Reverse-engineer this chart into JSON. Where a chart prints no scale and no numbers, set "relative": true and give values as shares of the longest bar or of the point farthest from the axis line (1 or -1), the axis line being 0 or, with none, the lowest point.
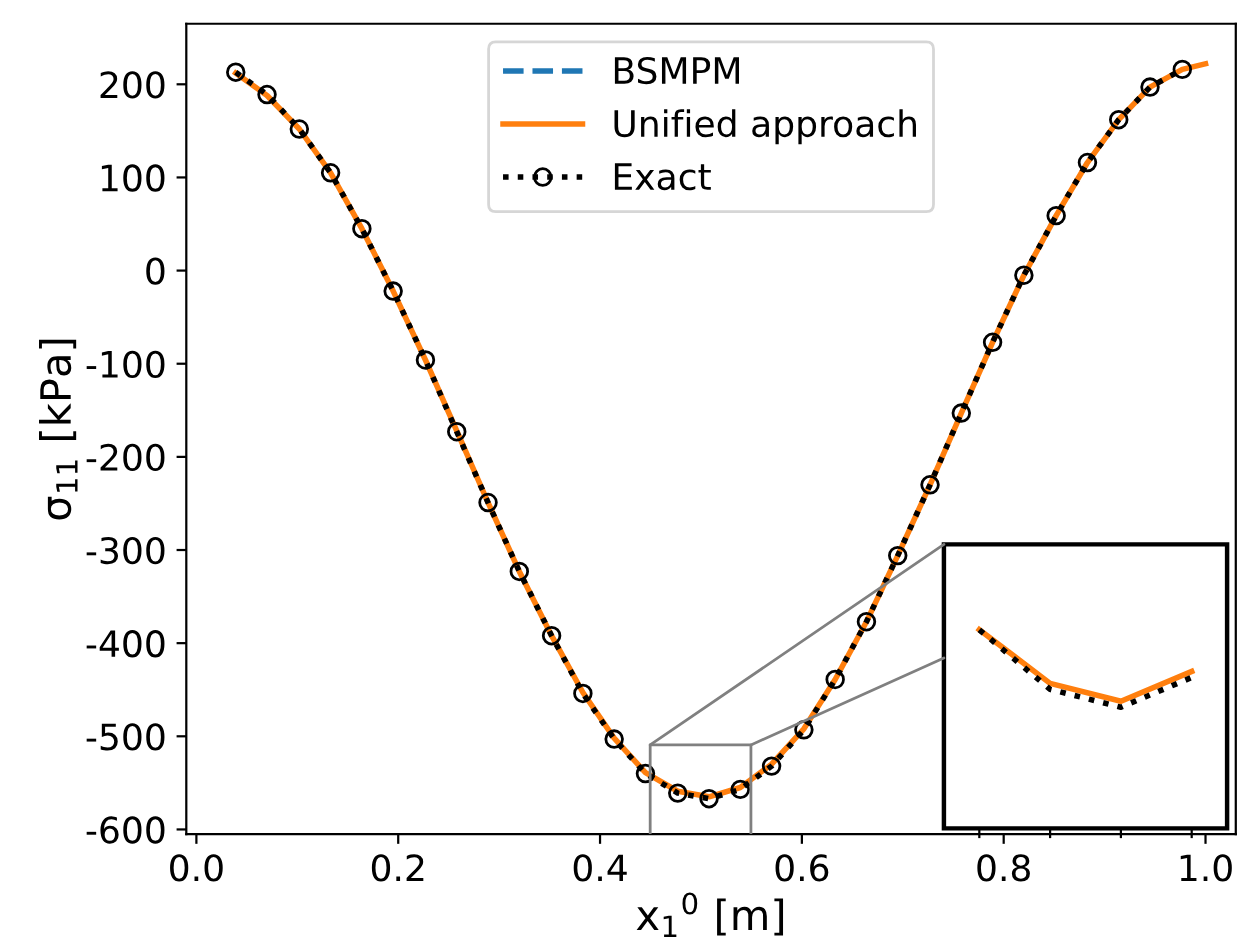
{
  "chart_data": [
    {
      "type": "line",
      "xlabel": "x$_{1}$$^{0}$ [m]",
      "ylabel": "σ$_{11}$ [kPa]",
      "xlim": [
        -0.01,
        1.03
      ],
      "ylim": [
        -605,
        265
      ],
      "xticks": [
        {
          "value": 0.0,
          "label": "0.0"
        },
        0.2,
        0.4,
        0.6,
        0.8,
        {
          "value": 1.0,
          "label": "1.0"
        }
      ],
      "yticks": [
        -600,
        -500,
        -400,
        -300,
        -200,
        -100,
        0,
        100,
        200
      ],
      "legend": "top",
      "series": [
        {
          "name": "BSMPM",
          "color": "#1f77b4",
          "line_style": "dashed"
        },
        {
          "name": "Unified approach",
          "color": "#ff7f0e",
          "line_style": "solid",
          "x": [
            0.039,
            0.07,
            0.102,
            0.133,
            0.164,
            0.195,
            0.227,
            0.258,
            0.289,
            0.32,
            0.352,
            0.383,
            0.414,
            0.445,
            0.477,
            0.508,
            0.539,
            0.57,
            0.602,
            0.633,
            0.664,
            0.695,
            0.727,
            0.758,
            0.789,
            0.82,
            0.852,
            0.883,
            0.914,
            0.945,
            0.977,
            1.0
          ],
          "values": [
            212,
            188,
            152,
            105,
            45,
            -22,
            -96,
            -172,
            -249,
            -323,
            -392,
            -453,
            -502,
            -539,
            -559,
            -565,
            -555,
            -530,
            -492,
            -439,
            -377,
            -306,
            -230,
            -153,
            -77,
            -5,
            59,
            116,
            162,
            197,
            216,
            222
          ]
        },
        {
          "name": "Exact",
          "color": "#000000",
          "line_style": "dotted",
          "marker": "circle",
          "x": [
            0.039,
            0.07,
            0.102,
            0.133,
            0.164,
            0.195,
            0.227,
            0.258,
            0.289,
            0.32,
            0.352,
            0.383,
            0.414,
            0.445,
            0.477,
            0.508,
            0.539,
            0.57,
            0.602,
            0.633,
            0.664,
            0.695,
            0.727,
            0.758,
            0.789,
            0.82,
            0.852,
            0.883,
            0.914,
            0.945,
            0.977
          ],
          "values": [
            213,
            189,
            152,
            105,
            45,
            -22,
            -96,
            -173,
            -249,
            -323,
            -392,
            -454,
            -503,
            -540,
            -561,
            -567,
            -557,
            -532,
            -493,
            -439,
            -377,
            -306,
            -230,
            -153,
            -77,
            -5,
            59,
            116,
            162,
            197,
            216
          ]
        }
      ]
    },
    {
      "type": "line",
      "relative": true,
      "categories": [
        null,
        null,
        null,
        null
      ],
      "series": [
        {
          "color": "#ff7f0e",
          "line_style": "solid",
          "values": [
            1,
            0.73,
            0.64,
            0.79
          ]
        },
        {
          "color": "#000000",
          "line_style": "dotted",
          "values": [
            1,
            0.7,
            0.61,
            0.76
          ]
        }
      ]
    }
  ]
}
